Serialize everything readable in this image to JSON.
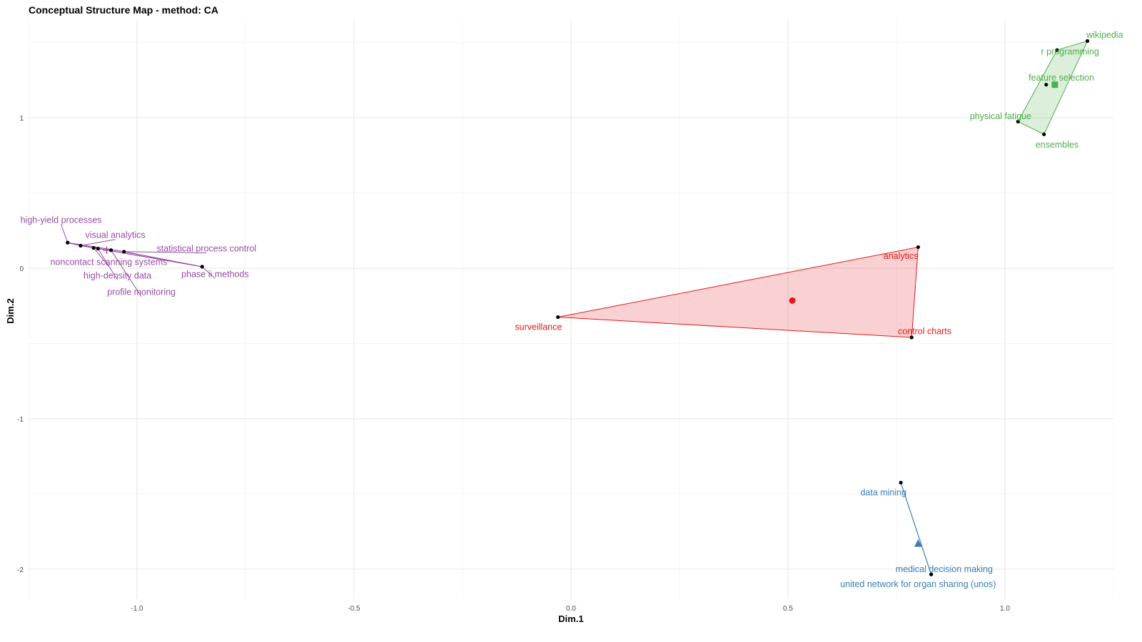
{
  "chart_data": {
    "type": "scatter",
    "title": "Conceptual Structure Map - method: CA",
    "xlabel": "Dim.1",
    "ylabel": "Dim.2",
    "xlim": [
      -1.25,
      1.25
    ],
    "ylim": [
      -2.2,
      1.65
    ],
    "grid": true,
    "x_ticks": [
      -1.0,
      -0.5,
      0.0,
      0.5,
      1.0
    ],
    "x_tick_labels": [
      "-1.0",
      "-0.5",
      "0.0",
      "0.5",
      "1.0"
    ],
    "y_ticks": [
      -2,
      -1,
      0,
      1
    ],
    "y_tick_labels": [
      "-2",
      "-1",
      "0",
      "1"
    ],
    "clusters": [
      {
        "color": "#984ea3",
        "centroid_marker": "cross",
        "centroid": [
          -1.07,
          0.12
        ],
        "hull": false,
        "points": [
          {
            "label": "high-yield processes",
            "x": -1.16,
            "y": 0.17,
            "lx": -1.175,
            "ly": 0.32
          },
          {
            "label": "visual analytics",
            "x": -1.13,
            "y": 0.15,
            "lx": -1.05,
            "ly": 0.22
          },
          {
            "label": "noncontact scanning systems",
            "x": -1.1,
            "y": 0.135,
            "lx": -1.065,
            "ly": 0.04
          },
          {
            "label": "high-density data",
            "x": -1.09,
            "y": 0.13,
            "lx": -1.045,
            "ly": -0.05
          },
          {
            "label": "profile monitoring",
            "x": -1.06,
            "y": 0.12,
            "lx": -0.99,
            "ly": -0.16
          },
          {
            "label": "statistical process control",
            "x": -1.03,
            "y": 0.11,
            "lx": -0.84,
            "ly": 0.13
          },
          {
            "label": "phase ii methods",
            "x": -0.85,
            "y": 0.01,
            "lx": -0.82,
            "ly": -0.04
          }
        ]
      },
      {
        "color": "#e41a1c",
        "centroid_marker": "circle",
        "centroid": [
          0.51,
          -0.215
        ],
        "hull": true,
        "points": [
          {
            "label": "analytics",
            "x": 0.8,
            "y": 0.14,
            "lx": 0.76,
            "ly": 0.08
          },
          {
            "label": "surveillance",
            "x": -0.03,
            "y": -0.325,
            "lx": -0.075,
            "ly": -0.39
          },
          {
            "label": "control charts",
            "x": 0.785,
            "y": -0.46,
            "lx": 0.815,
            "ly": -0.42
          }
        ]
      },
      {
        "color": "#4daf4a",
        "centroid_marker": "square",
        "centroid": [
          1.115,
          1.22
        ],
        "hull": true,
        "points": [
          {
            "label": "wikipedia",
            "x": 1.19,
            "y": 1.51,
            "lx": 1.23,
            "ly": 1.55
          },
          {
            "label": "r programming",
            "x": 1.12,
            "y": 1.45,
            "lx": 1.15,
            "ly": 1.44
          },
          {
            "label": "feature selection",
            "x": 1.095,
            "y": 1.22,
            "lx": 1.13,
            "ly": 1.265
          },
          {
            "label": "physical fatigue",
            "x": 1.03,
            "y": 0.975,
            "lx": 0.99,
            "ly": 1.01
          },
          {
            "label": "ensembles",
            "x": 1.09,
            "y": 0.89,
            "lx": 1.12,
            "ly": 0.82
          }
        ]
      },
      {
        "color": "#377eb8",
        "centroid_marker": "triangle",
        "centroid": [
          0.8,
          -1.83
        ],
        "hull": true,
        "points": [
          {
            "label": "data mining",
            "x": 0.76,
            "y": -1.425,
            "lx": 0.72,
            "ly": -1.49
          },
          {
            "label": "medical decision making",
            "x": 0.83,
            "y": -2.035,
            "lx": 0.86,
            "ly": -2.0
          },
          {
            "label": "united network for organ sharing (unos)",
            "x": 0.83,
            "y": -2.035,
            "lx": 0.8,
            "ly": -2.1
          }
        ]
      }
    ]
  }
}
